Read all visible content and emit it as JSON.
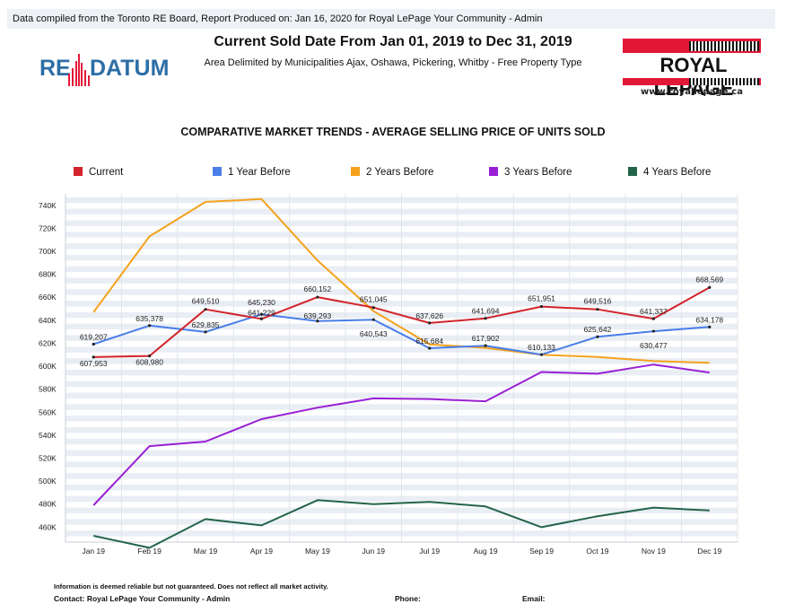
{
  "header": {
    "compiled_text": "Data compiled from the Toronto RE Board, Report Produced on: Jan 16, 2020 for Royal LePage Your Community -  Admin",
    "title": "Current Sold Date From Jan 01, 2019 to Dec 31, 2019",
    "subtitle": "Area Delimited by Municipalities Ajax, Oshawa, Pickering, Whitby - Free Property Type",
    "logo_left_re": "RE",
    "logo_left_datum": "DATUM",
    "logo_right_brand": "ROYAL LEPAGE",
    "logo_right_url": "www.royallepage.ca"
  },
  "chart_data": {
    "type": "line",
    "title": "COMPARATIVE MARKET TRENDS - AVERAGE SELLING PRICE OF UNITS SOLD",
    "categories": [
      "Jan 19",
      "Feb 19",
      "Mar 19",
      "Apr 19",
      "May 19",
      "Jun 19",
      "Jul 19",
      "Aug 19",
      "Sep 19",
      "Oct 19",
      "Nov 19",
      "Dec 19"
    ],
    "ylim": [
      447000,
      750000
    ],
    "yticks": [
      460000,
      480000,
      500000,
      520000,
      540000,
      560000,
      580000,
      600000,
      620000,
      640000,
      660000,
      680000,
      700000,
      720000,
      740000
    ],
    "ytick_labels": [
      "460K",
      "480K",
      "500K",
      "520K",
      "540K",
      "560K",
      "580K",
      "600K",
      "620K",
      "640K",
      "660K",
      "680K",
      "700K",
      "720K",
      "740K"
    ],
    "grid": true,
    "legend_position": "top",
    "series": [
      {
        "name": "Current",
        "color": "#d2232a",
        "values": [
          607953,
          608980,
          649510,
          641229,
          660152,
          651045,
          637626,
          641694,
          651951,
          649516,
          641337,
          668569
        ],
        "labels": [
          "607,953",
          "608,980",
          "649,510",
          "641,229",
          "660,152",
          "651,045",
          "637,626",
          "641,694",
          "651,951",
          "649,516",
          "641,337",
          "668,569"
        ]
      },
      {
        "name": "1 Year Before",
        "color": "#4a7ee8",
        "values": [
          619207,
          635378,
          629835,
          645230,
          639293,
          640543,
          615684,
          617902,
          610133,
          625642,
          630477,
          634178
        ],
        "labels": [
          "619,207",
          "635,378",
          "629,835",
          "645,230",
          "639,293",
          "640,543",
          "615,684",
          "617,902",
          "610,133",
          "625,642",
          "630,477",
          "634,178"
        ]
      },
      {
        "name": "2 Years Before",
        "color": "#f4a21d",
        "values": [
          647000,
          713000,
          743000,
          745500,
          692000,
          648000,
          619000,
          616000,
          610000,
          608000,
          604500,
          603000
        ]
      },
      {
        "name": "3 Years Before",
        "color": "#9a1fd4",
        "values": [
          479000,
          530500,
          534500,
          554000,
          564000,
          572000,
          571500,
          569500,
          595000,
          593500,
          601500,
          594500
        ]
      },
      {
        "name": "4 Years Before",
        "color": "#23644a",
        "values": [
          452500,
          442000,
          467000,
          461500,
          483500,
          480000,
          482000,
          478000,
          460000,
          469500,
          477000,
          474500
        ]
      }
    ]
  },
  "footer": {
    "disclaimer": "Information is deemed reliable but not guaranteed. Does not reflect all market activity.",
    "contact": "Contact: Royal LePage Your Community -  Admin",
    "phone": "Phone:",
    "email": "Email:"
  }
}
